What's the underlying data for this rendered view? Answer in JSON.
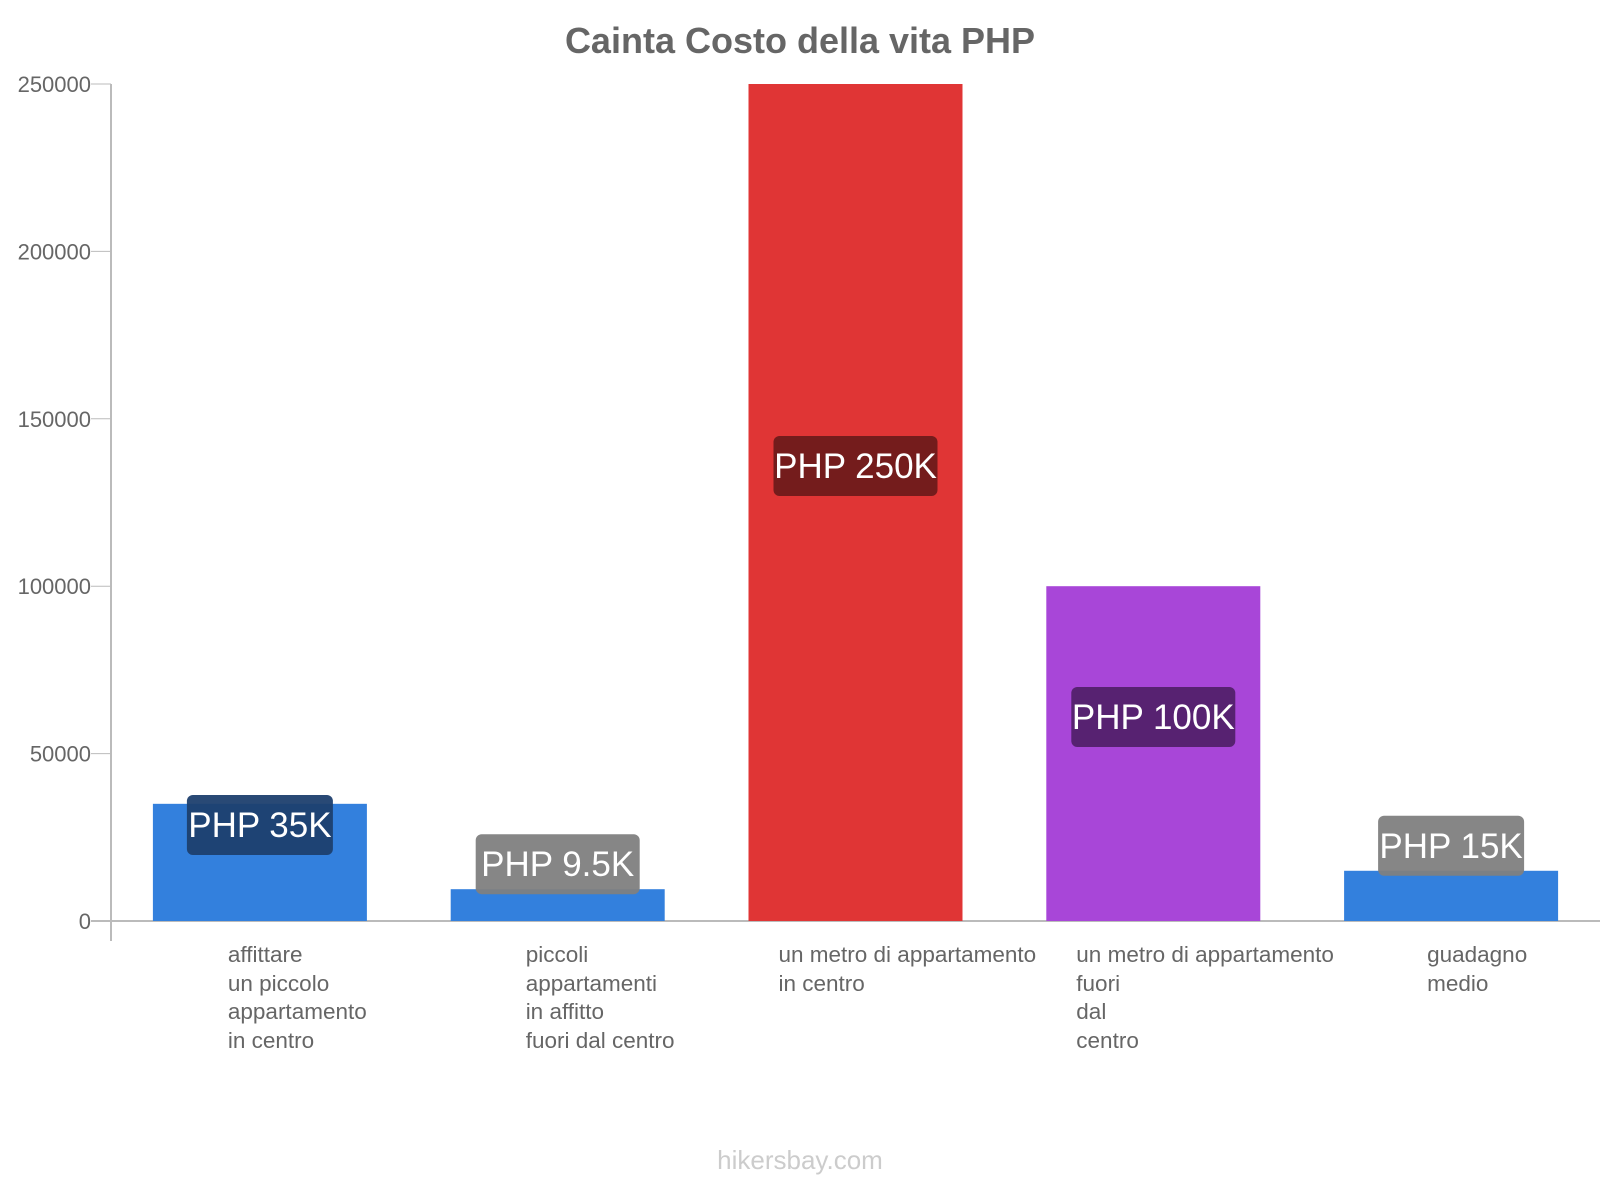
{
  "chart_data": {
    "type": "bar",
    "title": "Cainta Costo della vita PHP",
    "categories": [
      "affittare\nun piccolo\nappartamento\nin centro",
      "piccoli\nappartamenti\nin affitto\nfuori dal centro",
      "un metro di appartamento\nin centro",
      "un metro di appartamento\nfuori\ndal\ncentro",
      "guadagno\nmedio"
    ],
    "values": [
      35000,
      9500,
      250000,
      100000,
      15000
    ],
    "data_labels": [
      "PHP 35K",
      "PHP 9.5K",
      "PHP 250K",
      "PHP 100K",
      "PHP 15K"
    ],
    "colors": [
      "#3380dd",
      "#3380dd",
      "#e03535",
      "#a846d8",
      "#3380dd"
    ],
    "label_bg": [
      "#1d3f6e",
      "#7f7f7f",
      "#6e1b1b",
      "#52216b",
      "#7f7f7f"
    ],
    "ylim": [
      0,
      250000
    ],
    "yticks": [
      "0",
      "50000",
      "100000",
      "150000",
      "200000",
      "250000"
    ],
    "xlabel": "",
    "ylabel": "",
    "grid": false
  },
  "footer": "hikersbay.com"
}
